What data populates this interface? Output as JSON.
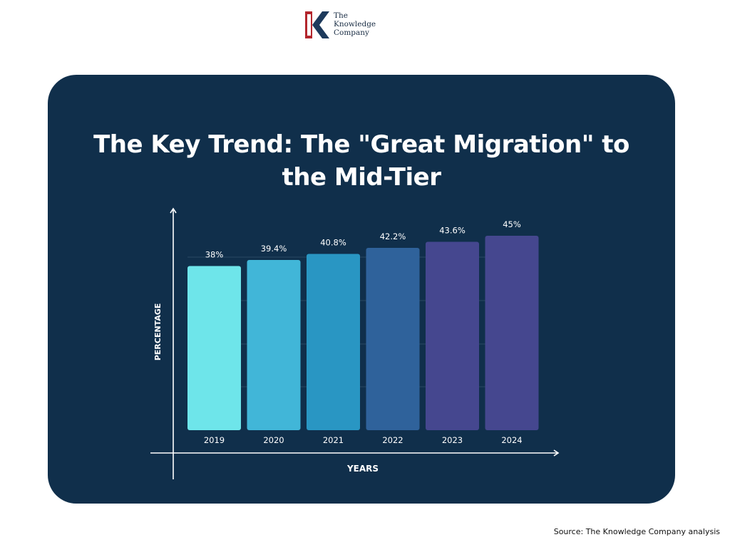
{
  "brand": {
    "logo_lines": [
      "The",
      "Knowledge",
      "Company"
    ],
    "logo_colors": {
      "navy": "#1d3a5c",
      "red": "#b3262d"
    }
  },
  "title": "The Key Trend: The \"Great Migration\" to the Mid-Tier",
  "source": "Source: The Knowledge Company analysis",
  "colors": {
    "card_background": "#102f4b",
    "axis": "#ffffff",
    "gridline": "#2a4863"
  },
  "chart_data": {
    "type": "bar",
    "title": "The Key Trend: The \"Great Migration\" to the Mid-Tier",
    "xlabel": "YEARS",
    "ylabel": "PERCENTAGE",
    "categories": [
      "2019",
      "2020",
      "2021",
      "2022",
      "2023",
      "2024"
    ],
    "values": [
      38,
      39.4,
      40.8,
      42.2,
      43.6,
      45
    ],
    "value_labels": [
      "38%",
      "39.4%",
      "40.8%",
      "42.2%",
      "43.6%",
      "45%"
    ],
    "bar_colors": [
      "#6ee5ea",
      "#41b6d8",
      "#2996c3",
      "#2f629b",
      "#45478f",
      "#45478f"
    ],
    "ylim": [
      0,
      45
    ],
    "grid": true,
    "unit": "%"
  }
}
